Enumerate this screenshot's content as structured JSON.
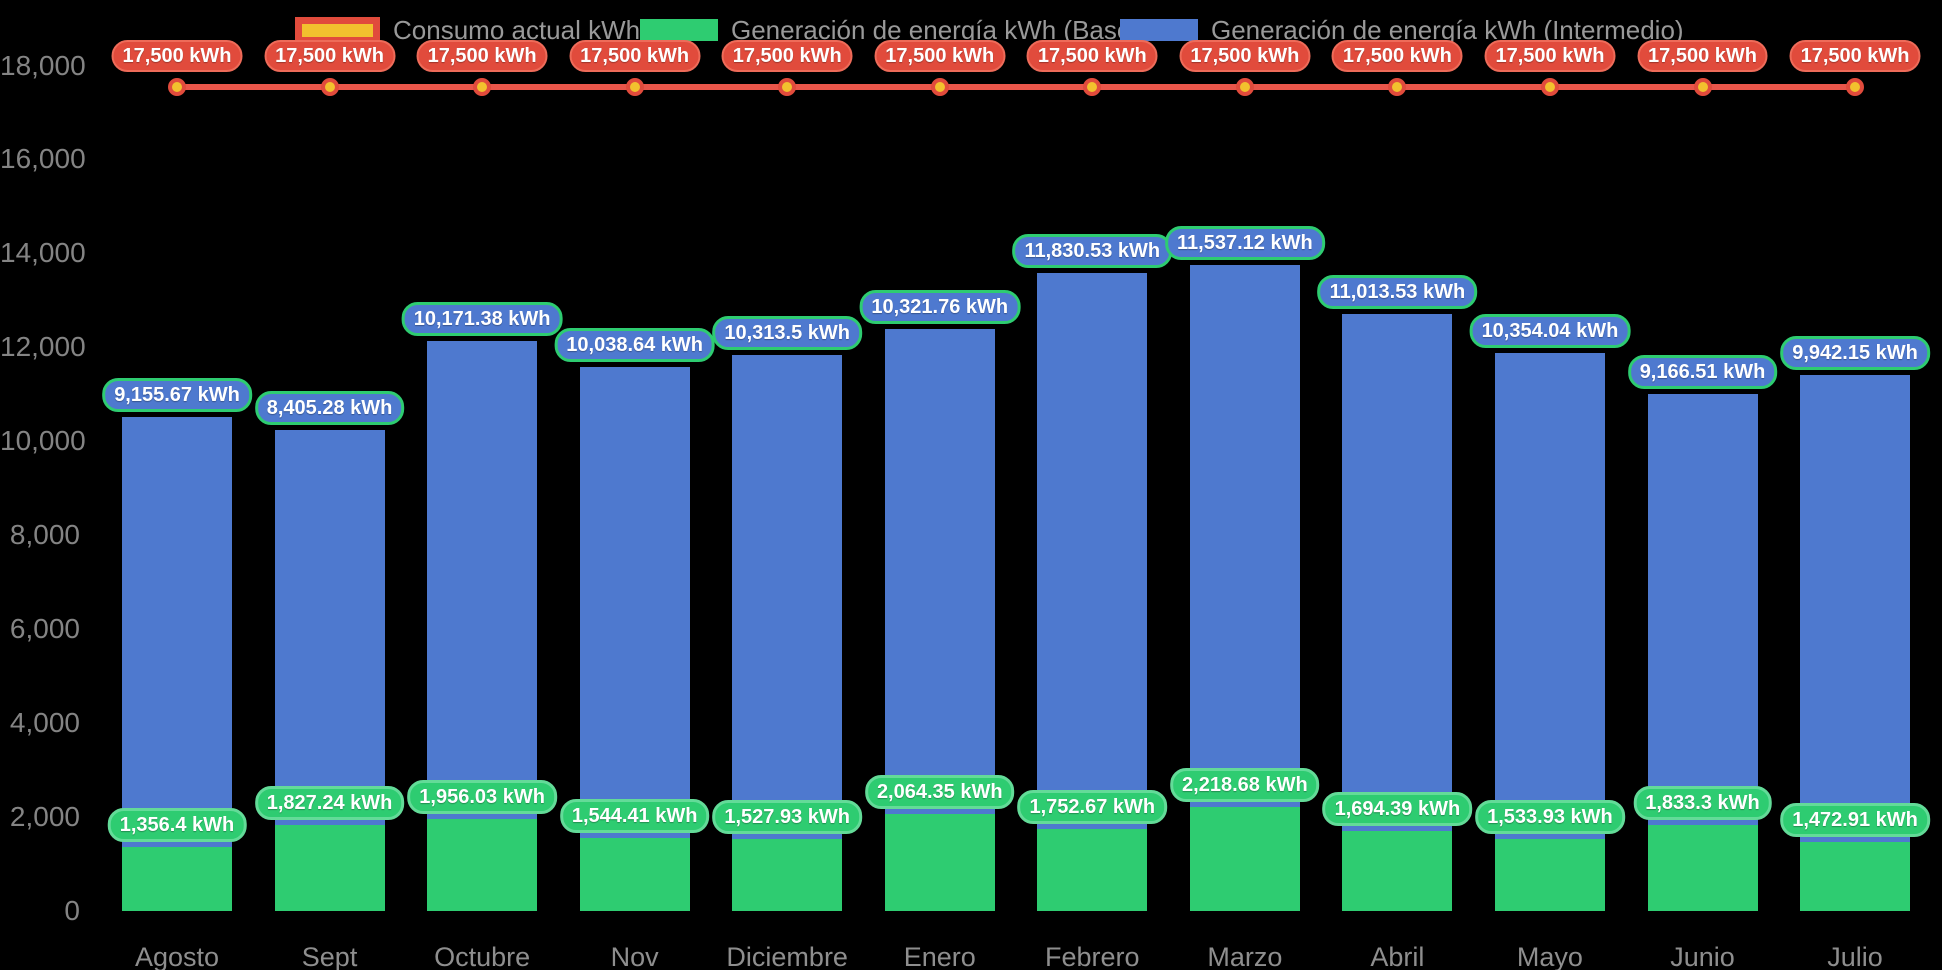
{
  "chart_data": {
    "type": "bar",
    "stacked": true,
    "title": "",
    "xlabel": "",
    "ylabel": "",
    "unit": "kWh",
    "background_color": "#000000",
    "grid": false,
    "legend_position": "top",
    "ylim": [
      0,
      18000
    ],
    "categories": [
      "Agosto",
      "Sept",
      "Octubre",
      "Nov",
      "Diciembre",
      "Enero",
      "Febrero",
      "Marzo",
      "Abril",
      "Mayo",
      "Junio",
      "Julio"
    ],
    "y_ticks": [
      {
        "value": 0,
        "label": "0"
      },
      {
        "value": 2000,
        "label": "2,000"
      },
      {
        "value": 4000,
        "label": "4,000"
      },
      {
        "value": 6000,
        "label": "6,000"
      },
      {
        "value": 8000,
        "label": "8,000"
      },
      {
        "value": 10000,
        "label": "10,000"
      },
      {
        "value": 12000,
        "label": "12,000"
      },
      {
        "value": 14000,
        "label": "14,000"
      },
      {
        "value": 16000,
        "label": "16,000"
      },
      {
        "value": 18000,
        "label": "18,000"
      }
    ],
    "series": [
      {
        "name": "Consumo actual kWh",
        "type": "line",
        "color": "#ea564a",
        "marker_fill": "#f2c12e",
        "marker_border": "#e14b3c",
        "values": [
          17500,
          17500,
          17500,
          17500,
          17500,
          17500,
          17500,
          17500,
          17500,
          17500,
          17500,
          17500
        ],
        "point_labels": [
          "17,500 kWh",
          "17,500 kWh",
          "17,500 kWh",
          "17,500 kWh",
          "17,500 kWh",
          "17,500 kWh",
          "17,500 kWh",
          "17,500 kWh",
          "17,500 kWh",
          "17,500 kWh",
          "17,500 kWh",
          "17,500 kWh"
        ]
      },
      {
        "name": "Generación de energía kWh (Base)",
        "type": "bar",
        "color": "#2ecc71",
        "values": [
          1356.4,
          1827.24,
          1956.03,
          1544.41,
          1527.93,
          2064.35,
          1752.67,
          2218.68,
          1694.39,
          1533.93,
          1833.3,
          1472.91
        ],
        "point_labels": [
          "1,356.4 kWh",
          "1,827.24 kWh",
          "1,956.03 kWh",
          "1,544.41 kWh",
          "1,527.93 kWh",
          "2,064.35 kWh",
          "1,752.67 kWh",
          "2,218.68 kWh",
          "1,694.39 kWh",
          "1,533.93 kWh",
          "1,833.3 kWh",
          "1,472.91 kWh"
        ]
      },
      {
        "name": "Generación de energía kWh (Intermedio)",
        "type": "bar",
        "color": "#4e79cf",
        "values": [
          9155.67,
          8405.28,
          10171.38,
          10038.64,
          10313.5,
          10321.76,
          11830.53,
          11537.12,
          11013.53,
          10354.04,
          9166.51,
          9942.15
        ],
        "point_labels": [
          "9,155.67 kWh",
          "8,405.28 kWh",
          "10,171.38 kWh",
          "10,038.64 kWh",
          "10,313.5 kWh",
          "10,321.76 kWh",
          "11,830.53 kWh",
          "11,537.12 kWh",
          "11,013.53 kWh",
          "10,354.04 kWh",
          "9,166.51 kWh",
          "9,942.15 kWh"
        ]
      }
    ]
  },
  "colors": {
    "background": "#000000",
    "axis_text": "#848484",
    "legend_text": "#999999",
    "target_line": "#ea564a",
    "target_pill_bg": "#e14b3c",
    "target_pill_border": "#ee6b59",
    "base_bar": "#2ecc71",
    "base_pill_border": "#63db98",
    "intermediate_bar": "#4e79cf",
    "intermediate_pill_border": "#2ecc71",
    "marker_fill": "#f2c12e",
    "value_text": "#ffffff"
  }
}
